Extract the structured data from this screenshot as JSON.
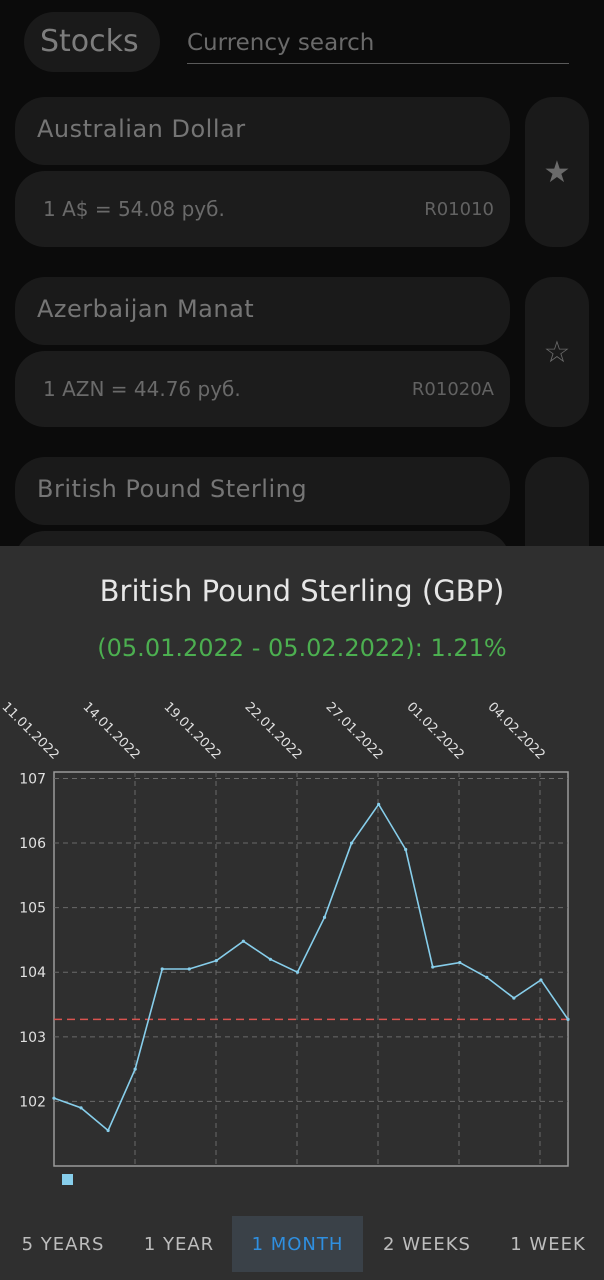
{
  "header": {
    "title": "Stocks",
    "search_placeholder": "Currency search"
  },
  "currencies": [
    {
      "name": "Australian Dollar",
      "rate": "1 A$ = 54.08 руб.",
      "code": "R01010",
      "favorite": true
    },
    {
      "name": "Azerbaijan Manat",
      "rate": "1 AZN = 44.76 руб.",
      "code": "R01020A",
      "favorite": false
    },
    {
      "name": "British Pound Sterling",
      "favorite": true
    }
  ],
  "icons": {
    "star_filled": "★",
    "star_outline": "☆"
  },
  "detail": {
    "title": "British Pound Sterling (GBP)",
    "change": "(05.01.2022 - 05.02.2022): 1.21%",
    "change_color": "#4caf50"
  },
  "chart_data": {
    "type": "line",
    "x_tick_labels": [
      "11.01.2022",
      "14.01.2022",
      "19.01.2022",
      "22.01.2022",
      "27.01.2022",
      "01.02.2022",
      "04.02.2022"
    ],
    "y_tick_labels": [
      "107",
      "106",
      "105",
      "104",
      "103",
      "102"
    ],
    "ylim": [
      101,
      107.1
    ],
    "series": [
      {
        "color": "#87ceeb",
        "values": [
          102.05,
          101.9,
          101.55,
          102.5,
          104.05,
          104.05,
          104.18,
          104.48,
          104.2,
          104.0,
          104.85,
          106.0,
          106.6,
          105.9,
          104.08,
          104.15,
          103.92,
          103.6,
          103.88,
          103.27
        ]
      }
    ],
    "reference_line": {
      "value": 103.27,
      "color": "#d9534f",
      "style": "dashed"
    },
    "grid": true,
    "legend": "bottom-left"
  },
  "periods": [
    {
      "label": "5 YEARS",
      "active": false
    },
    {
      "label": "1 YEAR",
      "active": false
    },
    {
      "label": "1 MONTH",
      "active": true
    },
    {
      "label": "2 WEEKS",
      "active": false
    },
    {
      "label": "1 WEEK",
      "active": false
    }
  ]
}
